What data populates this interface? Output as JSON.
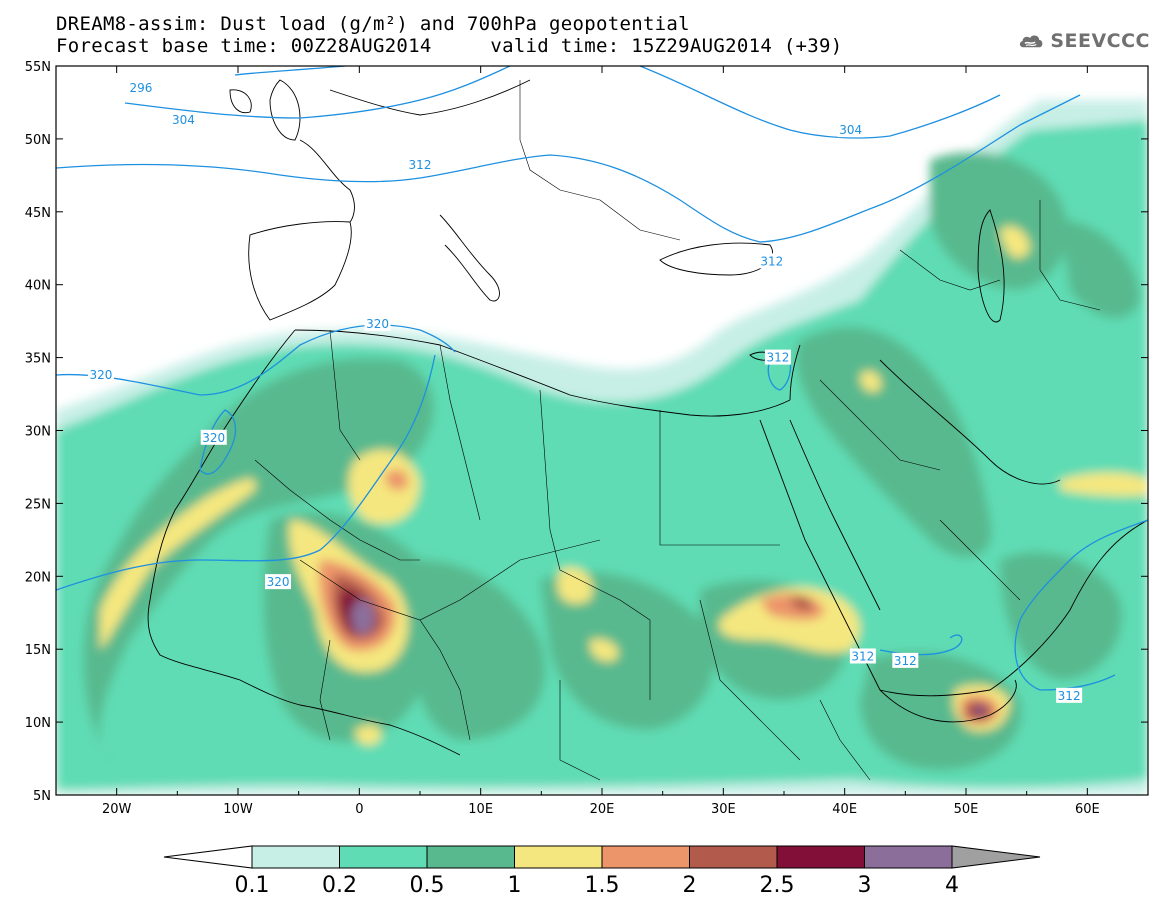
{
  "title": {
    "line1": "DREAM8-assim: Dust load (g/m²) and 700hPa geopotential",
    "line2": "Forecast base time: 00Z28AUG2014     valid time: 15Z29AUG2014 (+39)"
  },
  "logo": {
    "text": "SEEVCCC",
    "icon": "cloud-icon"
  },
  "map": {
    "lon_range": [
      -25,
      65
    ],
    "lat_range": [
      5,
      55
    ],
    "lon_ticks": [
      "20W",
      "10W",
      "0",
      "10E",
      "20E",
      "30E",
      "40E",
      "50E",
      "60E"
    ],
    "lat_ticks": [
      "5N",
      "10N",
      "15N",
      "20N",
      "25N",
      "30N",
      "35N",
      "40N",
      "45N",
      "50N",
      "55N"
    ],
    "contour_color": "#1e90e0",
    "contour_labels": [
      {
        "text": "296",
        "lon": -18,
        "lat": 53.5
      },
      {
        "text": "304",
        "lon": -14.5,
        "lat": 51.3
      },
      {
        "text": "312",
        "lon": 5,
        "lat": 48.2
      },
      {
        "text": "304",
        "lon": 40.5,
        "lat": 50.6
      },
      {
        "text": "312",
        "lon": 34,
        "lat": 41.6
      },
      {
        "text": "320",
        "lon": 1.5,
        "lat": 37.3
      },
      {
        "text": "320",
        "lon": -21.3,
        "lat": 33.8
      },
      {
        "text": "312",
        "lon": 34.5,
        "lat": 35
      },
      {
        "text": "320",
        "lon": -12,
        "lat": 29.5
      },
      {
        "text": "320",
        "lon": -6.7,
        "lat": 19.6
      },
      {
        "text": "312",
        "lon": 41.5,
        "lat": 14.5
      },
      {
        "text": "312",
        "lon": 45,
        "lat": 14.2
      },
      {
        "text": "312",
        "lon": 58.5,
        "lat": 11.8
      }
    ]
  },
  "colorbar": {
    "labels": [
      "0.1",
      "0.2",
      "0.5",
      "1",
      "1.5",
      "2",
      "2.5",
      "3",
      "4"
    ],
    "colors": [
      "#c8efe6",
      "#5fdcb4",
      "#58b98e",
      "#f5e77f",
      "#ec946a",
      "#b25a4b",
      "#820f37",
      "#8c6e9b"
    ],
    "over_color": "#a0a0a0",
    "under_color": "#ffffff"
  }
}
